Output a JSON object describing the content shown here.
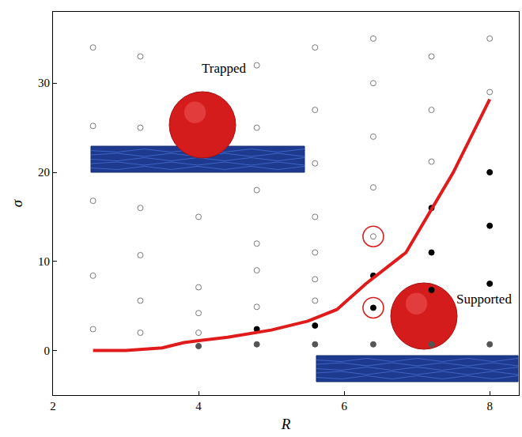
{
  "chart_data": {
    "type": "scatter",
    "x_label": "R",
    "y_label": "σ",
    "xlim": [
      2,
      8.4
    ],
    "ylim": [
      -5,
      38
    ],
    "xticks": [
      2,
      4,
      6,
      8
    ],
    "yticks": [
      0,
      10,
      20,
      30
    ],
    "grid": false,
    "annotations": [
      "Trapped",
      "Supported"
    ],
    "series": [
      {
        "type": "scatter",
        "marker": "open circle",
        "color": "#7a7a7a",
        "x": [
          2.55,
          2.55,
          2.55,
          2.55,
          2.55,
          3.2,
          3.2,
          3.2,
          3.2,
          3.2,
          3.2,
          4.0,
          4.0,
          4.0,
          4.0,
          4.8,
          4.8,
          4.8,
          4.8,
          4.8,
          4.8,
          5.6,
          5.6,
          5.6,
          5.6,
          5.6,
          5.6,
          5.6,
          6.4,
          6.4,
          6.4,
          6.4,
          6.4,
          7.2,
          7.2,
          7.2,
          8.0,
          8.0
        ],
        "values": [
          34,
          25.2,
          16.8,
          8.4,
          2.4,
          33,
          25,
          16,
          10.7,
          5.6,
          2.0,
          15,
          7.1,
          4.2,
          2.0,
          32,
          25,
          18,
          12,
          9,
          4.9,
          34,
          27,
          21,
          15,
          11,
          8,
          5.6,
          35,
          30,
          24,
          18.3,
          12.8,
          33,
          27,
          21.2,
          35,
          29
        ]
      },
      {
        "type": "scatter",
        "marker": "circle",
        "color": "#555555",
        "x": [
          4.0,
          4.8,
          5.6,
          6.4,
          7.2,
          8.0
        ],
        "values": [
          0.5,
          0.7,
          0.7,
          0.7,
          0.7,
          0.7
        ]
      },
      {
        "type": "scatter",
        "marker": "circle",
        "color": "#000000",
        "x": [
          4.8,
          5.6,
          6.4,
          6.4,
          7.2,
          7.2,
          7.2,
          8.0,
          8.0,
          8.0
        ],
        "values": [
          2.4,
          2.8,
          8.4,
          4.8,
          16,
          11,
          6.8,
          20,
          14,
          7.5
        ]
      },
      {
        "type": "scatter",
        "marker": "ring",
        "color": "#d42020",
        "x": [
          6.4,
          6.4
        ],
        "values": [
          12.8,
          4.8
        ]
      },
      {
        "type": "line",
        "line_style": "solid",
        "color": "#e01b1b",
        "x": [
          2.55,
          3.0,
          3.5,
          3.8,
          4.4,
          5.0,
          5.5,
          5.9,
          6.3,
          6.85,
          7.5,
          8.0
        ],
        "values": [
          0,
          0,
          0.3,
          0.9,
          1.5,
          2.3,
          3.3,
          4.6,
          7.5,
          11,
          20,
          28.2
        ]
      }
    ]
  }
}
